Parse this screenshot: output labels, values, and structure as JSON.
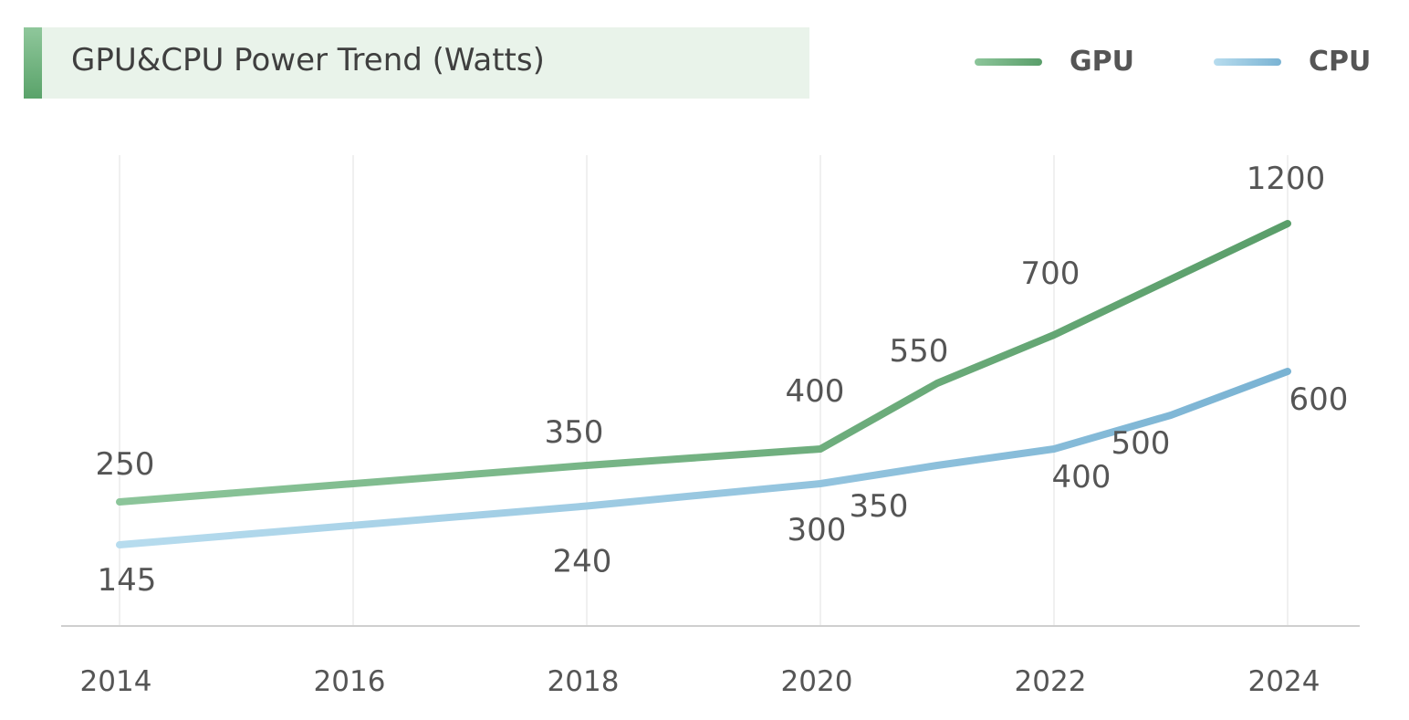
{
  "chart_data": {
    "type": "line",
    "title": "GPU&CPU Power Trend (Watts)",
    "xlabel": "",
    "ylabel": "",
    "x_ticks": [
      "2014",
      "2016",
      "2018",
      "2020",
      "2022",
      "2024"
    ],
    "grid": "vertical",
    "legend_position": "top-right",
    "ylim": [
      0,
      1250
    ],
    "series": [
      {
        "name": "GPU",
        "color": "#5a9e6a",
        "color_light": "#8cc59a",
        "points": [
          {
            "x": 2014,
            "y": 250,
            "label": "250"
          },
          {
            "x": 2018,
            "y": 350,
            "label": "350"
          },
          {
            "x": 2020,
            "y": 400,
            "label": "400"
          },
          {
            "x": 2021,
            "y": 550,
            "label": "550"
          },
          {
            "x": 2022,
            "y": 700,
            "label": "700"
          },
          {
            "x": 2024,
            "y": 1200,
            "label": "1200"
          }
        ]
      },
      {
        "name": "CPU",
        "color": "#7ab3d3",
        "color_light": "#b7dcee",
        "points": [
          {
            "x": 2014,
            "y": 145,
            "label": "145"
          },
          {
            "x": 2018,
            "y": 240,
            "label": "240"
          },
          {
            "x": 2020,
            "y": 300,
            "label": "300"
          },
          {
            "x": 2021,
            "y": 350,
            "label": "350"
          },
          {
            "x": 2022,
            "y": 400,
            "label": "400"
          },
          {
            "x": 2023,
            "y": 500,
            "label": "500"
          },
          {
            "x": 2024,
            "y": 600,
            "label": "600"
          }
        ]
      }
    ]
  }
}
